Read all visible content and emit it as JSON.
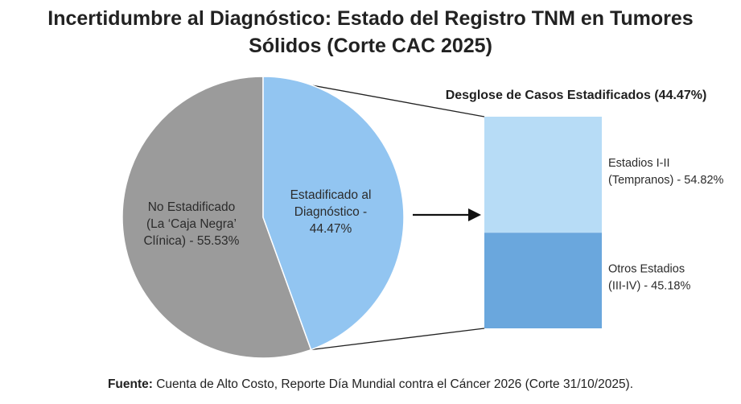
{
  "title_line1": "Incertidumbre al Diagnóstico: Estado del Registro TNM en Tumores",
  "title_line2": "Sólidos (Corte CAC 2025)",
  "source_label": "Fuente:",
  "source_text": "Cuenta de Alto Costo, Reporte Día Mundial contra el Cáncer 2026 (Corte 31/10/2025).",
  "colors": {
    "not_staged": "#9b9b9b",
    "staged": "#92c5f1",
    "early": "#b7dcf6",
    "other": "#6aa7dd",
    "connector": "#222222"
  },
  "chart_data": [
    {
      "type": "pie",
      "slices": [
        {
          "label_lines": [
            "No Estadificado",
            "(La ‘Caja Negra’",
            "Clínica) - 55.53%"
          ],
          "value": 55.53
        },
        {
          "label_lines": [
            "Estadificado al",
            "Diagnóstico -",
            "44.47%"
          ],
          "value": 44.47
        }
      ]
    },
    {
      "type": "bar",
      "stacked": true,
      "title": "Desglose de Casos Estadificados (44.47%)",
      "segments": [
        {
          "label_lines": [
            "Estadios I-II",
            "(Tempranos) - 54.82%"
          ],
          "value": 54.82
        },
        {
          "label_lines": [
            "Otros Estadios",
            "(III-IV) - 45.18%"
          ],
          "value": 45.18
        }
      ]
    }
  ]
}
